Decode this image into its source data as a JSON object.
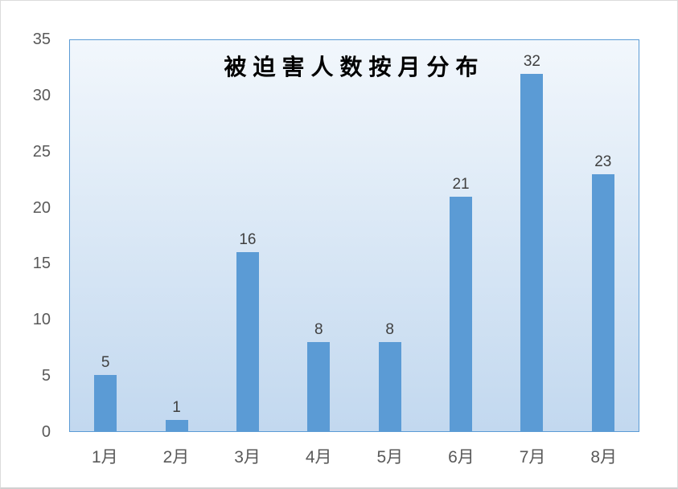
{
  "chart_data": {
    "type": "bar",
    "title": "被迫害人数按月分布",
    "categories": [
      "1月",
      "2月",
      "3月",
      "4月",
      "5月",
      "6月",
      "7月",
      "8月"
    ],
    "values": [
      5,
      1,
      16,
      8,
      8,
      21,
      32,
      23
    ],
    "series": [
      {
        "name": "被迫害人数",
        "values": [
          5,
          1,
          16,
          8,
          8,
          21,
          32,
          23
        ]
      }
    ],
    "xlabel": "",
    "ylabel": "",
    "ylim": [
      0,
      35
    ],
    "y_ticks": [
      0,
      5,
      10,
      15,
      20,
      25,
      30,
      35
    ],
    "grid": false,
    "legend": false,
    "data_labels_shown": true,
    "colors": {
      "bar": "#5b9bd5",
      "plot_border": "#5b9bd5",
      "plot_bg_top": "#f2f7fc",
      "plot_bg_bottom": "#c2d8ef",
      "axis_label": "#595959",
      "data_label": "#3f3f3f",
      "title": "#000000",
      "frame_border": "#d0d0d0"
    }
  }
}
